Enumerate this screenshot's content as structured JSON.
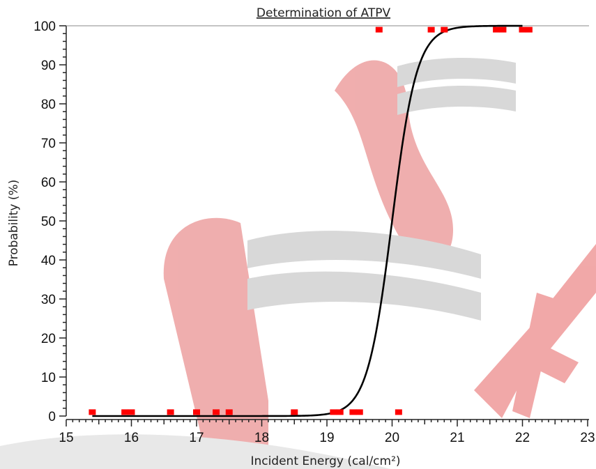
{
  "chart_data": {
    "type": "scatter",
    "title": "Determination of ATPV",
    "xlabel": "Incident Energy (cal/cm²)",
    "ylabel": "Probability (%)",
    "xlim": [
      15,
      23
    ],
    "ylim": [
      0,
      100
    ],
    "x_ticks": [
      "15",
      "16",
      "17",
      "18",
      "19",
      "20",
      "21",
      "22",
      "23"
    ],
    "y_ticks": [
      "0",
      "10",
      "20",
      "30",
      "40",
      "50",
      "60",
      "70",
      "80",
      "90",
      "100"
    ],
    "grid": false,
    "legend": "none",
    "colors": {
      "points": "#ff0000",
      "curve": "#000000",
      "watermark_red": "#e88585",
      "watermark_gray": "#c8c8c8"
    },
    "series": [
      {
        "kind": "points",
        "points": [
          [
            15.4,
            1
          ],
          [
            15.9,
            1
          ],
          [
            16.0,
            1
          ],
          [
            16.6,
            1
          ],
          [
            17.0,
            1
          ],
          [
            17.3,
            1
          ],
          [
            17.5,
            1
          ],
          [
            18.5,
            1
          ],
          [
            19.1,
            1
          ],
          [
            19.2,
            1
          ],
          [
            19.4,
            1
          ],
          [
            19.5,
            1
          ],
          [
            20.1,
            1
          ],
          [
            19.8,
            99
          ],
          [
            20.6,
            99
          ],
          [
            20.8,
            99
          ],
          [
            21.6,
            99
          ],
          [
            21.7,
            99
          ],
          [
            22.0,
            99
          ],
          [
            22.1,
            99
          ]
        ]
      },
      {
        "kind": "fit_curve",
        "model": "logistic",
        "midpoint": 20.0,
        "scale": 0.19,
        "x_start": 15.4,
        "x_end": 22.0
      }
    ]
  }
}
